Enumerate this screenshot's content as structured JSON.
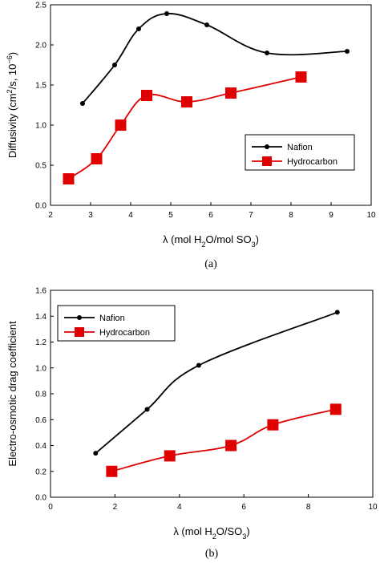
{
  "chart_data": [
    {
      "type": "line",
      "panel_label": "(a)",
      "title": "",
      "xlabel_parts": [
        "λ (mol H",
        "2",
        "O/mol SO",
        "3",
        ")"
      ],
      "ylabel_parts": [
        "Diffusivity (cm",
        "2",
        "/s, 10",
        "−6",
        ")"
      ],
      "xlim": [
        2,
        10
      ],
      "ylim": [
        0,
        2.5
      ],
      "x_ticks": [
        "2",
        "3",
        "4",
        "5",
        "6",
        "7",
        "8",
        "9",
        "10"
      ],
      "y_ticks": [
        "0.0",
        "0.5",
        "1.0",
        "1.5",
        "2.0",
        "2.5"
      ],
      "grid": false,
      "legend_position": "right",
      "series": [
        {
          "name": "Nafion",
          "color": "#000000",
          "marker": "circle",
          "smooth": true,
          "x": [
            2.8,
            3.6,
            4.2,
            4.9,
            5.9,
            7.4,
            9.4
          ],
          "y": [
            1.27,
            1.75,
            2.2,
            2.39,
            2.25,
            1.9,
            1.92
          ]
        },
        {
          "name": "Hydrocarbon",
          "color": "#e00000",
          "marker": "square",
          "smooth": true,
          "x": [
            2.45,
            3.15,
            3.75,
            4.4,
            5.4,
            6.5,
            8.25
          ],
          "y": [
            0.33,
            0.58,
            1.0,
            1.37,
            1.29,
            1.4,
            1.6
          ]
        }
      ]
    },
    {
      "type": "line",
      "panel_label": "(b)",
      "title": "",
      "xlabel_parts": [
        "λ (mol H",
        "2",
        "O/SO",
        "3",
        ")"
      ],
      "ylabel_parts": [
        "Electro-osmotic drag coefficient"
      ],
      "xlim": [
        0,
        10
      ],
      "ylim": [
        0,
        1.6
      ],
      "x_ticks": [
        "0",
        "2",
        "4",
        "6",
        "8",
        "10"
      ],
      "y_ticks": [
        "0.0",
        "0.2",
        "0.4",
        "0.6",
        "0.8",
        "1.0",
        "1.2",
        "1.4",
        "1.6"
      ],
      "grid": false,
      "legend_position": "top-left",
      "series": [
        {
          "name": "Nafion",
          "color": "#000000",
          "marker": "circle",
          "smooth": true,
          "x": [
            1.4,
            3.0,
            4.6,
            8.9
          ],
          "y": [
            0.34,
            0.68,
            1.02,
            1.43
          ]
        },
        {
          "name": "Hydrocarbon",
          "color": "#e00000",
          "marker": "square",
          "smooth": true,
          "x": [
            1.9,
            3.7,
            5.6,
            6.9,
            8.85
          ],
          "y": [
            0.2,
            0.32,
            0.4,
            0.56,
            0.68
          ]
        }
      ]
    }
  ]
}
